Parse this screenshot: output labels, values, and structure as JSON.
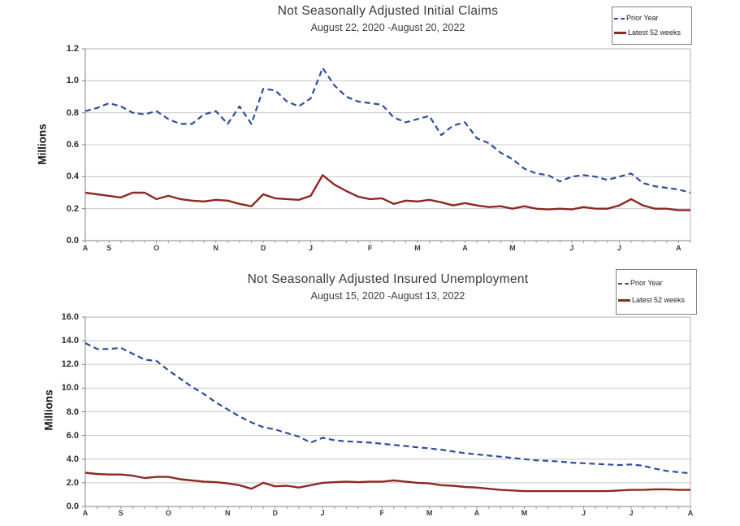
{
  "colors": {
    "prior_year_line": "#2e4d9b",
    "latest_line": "#8e2823",
    "gridline": "#c8c8c8",
    "axis": "#808080",
    "plot_border": "#b0b0b0",
    "background": "#ffffff"
  },
  "chart_data": [
    {
      "type": "line",
      "title": "Not Seasonally Adjusted Initial Claims",
      "subtitle": "August 22, 2020 -August 20, 2022",
      "ylabel": "Millions",
      "xlabel": "",
      "ylim": [
        0,
        1.2
      ],
      "ytick_step": 0.2,
      "ytick_labels": [
        "1.2",
        "1.0",
        "0.8",
        "0.6",
        "0.4",
        "0.2",
        "0.0"
      ],
      "grid": true,
      "legend_position": "top-right",
      "n_weeks": 52,
      "x_tick_labels": [
        "A",
        "S",
        "O",
        "N",
        "D",
        "J",
        "F",
        "M",
        "A",
        "M",
        "J",
        "J",
        "A"
      ],
      "x_tick_weeks": [
        0,
        2,
        6,
        11,
        15,
        19,
        24,
        28,
        32,
        36,
        41,
        45,
        50
      ],
      "series": [
        {
          "name": "Prior Year",
          "color": "#2e4d9b",
          "dash": true,
          "values": [
            0.81,
            0.83,
            0.86,
            0.84,
            0.8,
            0.79,
            0.81,
            0.76,
            0.73,
            0.73,
            0.79,
            0.81,
            0.73,
            0.84,
            0.73,
            0.95,
            0.94,
            0.87,
            0.84,
            0.89,
            1.08,
            0.97,
            0.9,
            0.87,
            0.86,
            0.85,
            0.77,
            0.74,
            0.76,
            0.78,
            0.66,
            0.72,
            0.74,
            0.64,
            0.61,
            0.55,
            0.51,
            0.45,
            0.42,
            0.41,
            0.37,
            0.4,
            0.41,
            0.4,
            0.38,
            0.4,
            0.42,
            0.36,
            0.34,
            0.33,
            0.32,
            0.3
          ]
        },
        {
          "name": "Latest 52 weeks",
          "color": "#8e2823",
          "dash": false,
          "values": [
            0.3,
            0.29,
            0.28,
            0.27,
            0.3,
            0.3,
            0.26,
            0.28,
            0.26,
            0.25,
            0.245,
            0.255,
            0.25,
            0.23,
            0.215,
            0.29,
            0.265,
            0.26,
            0.255,
            0.28,
            0.41,
            0.35,
            0.31,
            0.275,
            0.26,
            0.265,
            0.23,
            0.25,
            0.245,
            0.255,
            0.24,
            0.22,
            0.235,
            0.22,
            0.21,
            0.215,
            0.2,
            0.215,
            0.2,
            0.195,
            0.2,
            0.195,
            0.21,
            0.2,
            0.2,
            0.22,
            0.26,
            0.22,
            0.2,
            0.2,
            0.19,
            0.19
          ]
        }
      ]
    },
    {
      "type": "line",
      "title": "Not Seasonally Adjusted Insured Unemployment",
      "subtitle": "August 15, 2020 -August 13, 2022",
      "ylabel": "Millions",
      "xlabel": "",
      "ylim": [
        0,
        16
      ],
      "ytick_step": 2,
      "ytick_labels": [
        "16.0",
        "14.0",
        "12.0",
        "10.0",
        "8.0",
        "6.0",
        "4.0",
        "2.0",
        "0.0"
      ],
      "grid": true,
      "legend_position": "top-right",
      "n_weeks": 52,
      "x_tick_labels": [
        "A",
        "S",
        "O",
        "N",
        "D",
        "J",
        "F",
        "M",
        "A",
        "M",
        "J",
        "J",
        "A"
      ],
      "x_tick_weeks": [
        0,
        3,
        7,
        12,
        16,
        20,
        25,
        29,
        33,
        37,
        42,
        46,
        51
      ],
      "series": [
        {
          "name": "Prior Year",
          "color": "#2e4d9b",
          "dash": true,
          "values": [
            13.8,
            13.3,
            13.3,
            13.4,
            12.9,
            12.4,
            12.3,
            11.5,
            10.8,
            10.1,
            9.5,
            8.8,
            8.2,
            7.6,
            7.1,
            6.7,
            6.5,
            6.2,
            5.9,
            5.4,
            5.8,
            5.6,
            5.5,
            5.45,
            5.4,
            5.3,
            5.2,
            5.1,
            5.0,
            4.9,
            4.8,
            4.65,
            4.5,
            4.4,
            4.3,
            4.2,
            4.1,
            4.0,
            3.9,
            3.85,
            3.8,
            3.7,
            3.65,
            3.6,
            3.55,
            3.5,
            3.55,
            3.45,
            3.2,
            3.0,
            2.9,
            2.8
          ]
        },
        {
          "name": "Latest 52 weeks",
          "color": "#8e2823",
          "dash": false,
          "values": [
            2.85,
            2.75,
            2.7,
            2.7,
            2.6,
            2.4,
            2.5,
            2.5,
            2.3,
            2.2,
            2.1,
            2.05,
            1.95,
            1.8,
            1.5,
            2.0,
            1.7,
            1.75,
            1.6,
            1.8,
            2.0,
            2.05,
            2.1,
            2.05,
            2.1,
            2.1,
            2.2,
            2.1,
            2.0,
            1.95,
            1.8,
            1.75,
            1.65,
            1.6,
            1.5,
            1.4,
            1.35,
            1.3,
            1.3,
            1.3,
            1.3,
            1.3,
            1.3,
            1.3,
            1.3,
            1.35,
            1.4,
            1.4,
            1.45,
            1.45,
            1.4,
            1.4
          ]
        }
      ]
    }
  ]
}
